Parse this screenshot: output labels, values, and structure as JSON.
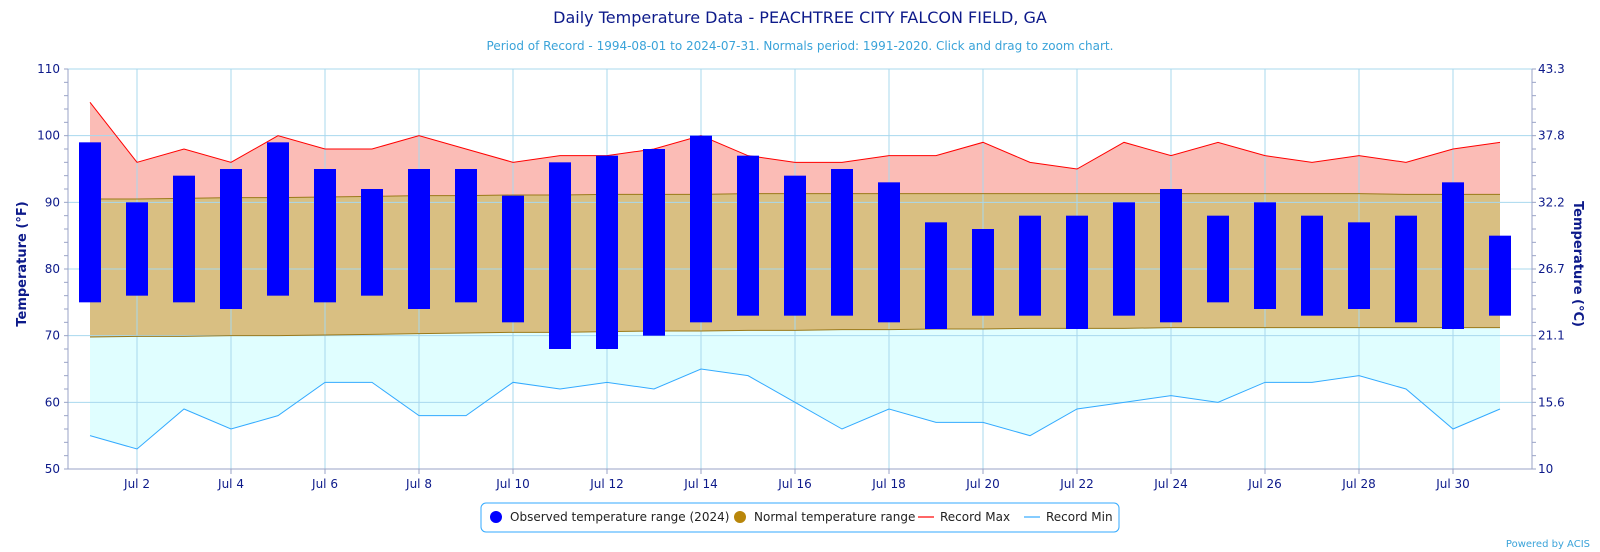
{
  "chart_data": {
    "type": "bar",
    "title": "Daily Temperature Data - PEACHTREE CITY FALCON FIELD, GA",
    "subtitle": "Period of Record - 1994-08-01 to 2024-07-31. Normals period: 1991-2020. Click and drag to zoom chart.",
    "ylabel_left": "Temperature (°F)",
    "ylabel_right": "Temperature (°C)",
    "ylim": [
      50,
      110
    ],
    "y_ticks_left": [
      "50",
      "60",
      "70",
      "80",
      "90",
      "100",
      "110"
    ],
    "y_ticks_right": [
      "10",
      "15.6",
      "21.1",
      "26.7",
      "32.2",
      "37.8",
      "43.3"
    ],
    "x_tick_labels": [
      {
        "day": 2,
        "label": "Jul 2"
      },
      {
        "day": 4,
        "label": "Jul 4"
      },
      {
        "day": 6,
        "label": "Jul 6"
      },
      {
        "day": 8,
        "label": "Jul 8"
      },
      {
        "day": 10,
        "label": "Jul 10"
      },
      {
        "day": 12,
        "label": "Jul 12"
      },
      {
        "day": 14,
        "label": "Jul 14"
      },
      {
        "day": 16,
        "label": "Jul 16"
      },
      {
        "day": 18,
        "label": "Jul 18"
      },
      {
        "day": 20,
        "label": "Jul 20"
      },
      {
        "day": 22,
        "label": "Jul 22"
      },
      {
        "day": 24,
        "label": "Jul 24"
      },
      {
        "day": 26,
        "label": "Jul 26"
      },
      {
        "day": 28,
        "label": "Jul 28"
      },
      {
        "day": 30,
        "label": "Jul 30"
      }
    ],
    "days": [
      1,
      2,
      3,
      4,
      5,
      6,
      7,
      8,
      9,
      10,
      11,
      12,
      13,
      14,
      15,
      16,
      17,
      18,
      19,
      20,
      21,
      22,
      23,
      24,
      25,
      26,
      27,
      28,
      29,
      30,
      31
    ],
    "series": [
      {
        "name": "Observed temperature range (2024)",
        "kind": "range-bar",
        "color": "#0000ff",
        "high": [
          99,
          90,
          94,
          95,
          99,
          95,
          92,
          95,
          95,
          91,
          96,
          97,
          98,
          100,
          97,
          94,
          95,
          93,
          87,
          86,
          88,
          88,
          90,
          92,
          88,
          90,
          88,
          87,
          88,
          93,
          85
        ],
        "low": [
          75,
          76,
          75,
          74,
          76,
          75,
          76,
          74,
          75,
          72,
          68,
          68,
          70,
          72,
          73,
          73,
          73,
          72,
          71,
          73,
          73,
          71,
          73,
          72,
          75,
          74,
          73,
          74,
          72,
          71,
          73
        ]
      },
      {
        "name": "Normal temperature range",
        "kind": "range-area",
        "color": "#b8860b",
        "high": [
          90.5,
          90.5,
          90.6,
          90.7,
          90.7,
          90.8,
          90.9,
          91.0,
          91.0,
          91.1,
          91.1,
          91.2,
          91.2,
          91.2,
          91.3,
          91.3,
          91.3,
          91.3,
          91.3,
          91.3,
          91.3,
          91.3,
          91.3,
          91.3,
          91.3,
          91.3,
          91.3,
          91.3,
          91.2,
          91.2,
          91.2
        ],
        "low": [
          69.8,
          69.9,
          69.9,
          70.0,
          70.0,
          70.1,
          70.2,
          70.3,
          70.4,
          70.5,
          70.5,
          70.6,
          70.7,
          70.7,
          70.8,
          70.8,
          70.9,
          70.9,
          71.0,
          71.0,
          71.1,
          71.1,
          71.1,
          71.2,
          71.2,
          71.2,
          71.2,
          71.2,
          71.2,
          71.2,
          71.2
        ]
      },
      {
        "name": "Record Max",
        "kind": "line",
        "color": "#ff0000",
        "values": [
          105,
          96,
          98,
          96,
          100,
          98,
          98,
          100,
          98,
          96,
          97,
          97,
          98,
          100,
          97,
          96,
          96,
          97,
          97,
          99,
          96,
          95,
          99,
          97,
          99,
          97,
          96,
          97,
          96,
          98,
          99
        ]
      },
      {
        "name": "Record Min",
        "kind": "line",
        "color": "#33aaff",
        "values": [
          55,
          53,
          59,
          56,
          58,
          63,
          63,
          58,
          58,
          63,
          62,
          63,
          62,
          65,
          64,
          60,
          56,
          59,
          57,
          57,
          55,
          59,
          60,
          61,
          60,
          63,
          63,
          64,
          62,
          56,
          59
        ]
      }
    ],
    "legend_position": "bottom-center",
    "grid": true,
    "credit": "Powered by ACIS"
  }
}
